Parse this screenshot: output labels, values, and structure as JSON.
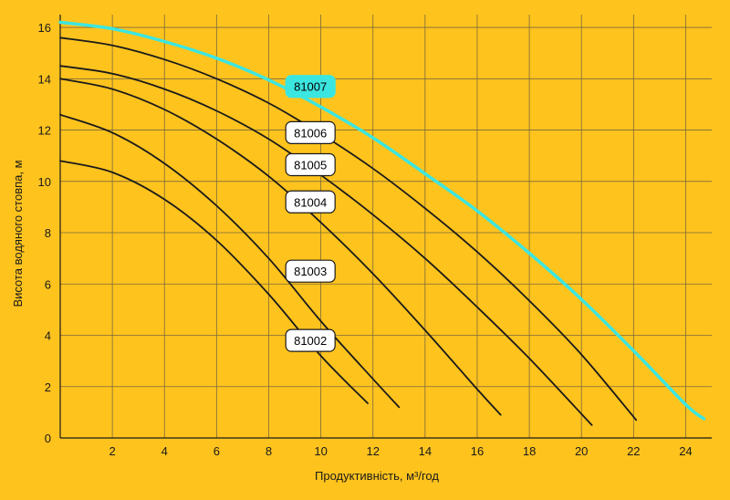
{
  "chart_data": {
    "type": "line",
    "title": "",
    "xlabel": "Продуктивність, м³/год",
    "ylabel": "Висота водяного стовпа, м",
    "xlim": [
      0,
      25
    ],
    "ylim": [
      0,
      16.5
    ],
    "x_ticks": [
      "2",
      "4",
      "6",
      "8",
      "10",
      "12",
      "14",
      "16",
      "18",
      "20",
      "22",
      "24"
    ],
    "y_ticks": [
      "0",
      "2",
      "4",
      "6",
      "8",
      "10",
      "12",
      "14",
      "16"
    ],
    "grid": true,
    "colors": {
      "background": "#FFC31E",
      "grid": "#7a6a3a",
      "curve": "#1a1a1a",
      "highlight": "#3CE6E0",
      "label_box": "#FFFFFF"
    },
    "series": [
      {
        "name": "81002",
        "highlight": false,
        "label_x": 9.6,
        "label_y": 3.8,
        "x": [
          0,
          2,
          4,
          6,
          8,
          10,
          11.8
        ],
        "y": [
          10.8,
          10.35,
          9.3,
          7.7,
          5.6,
          3.2,
          1.35
        ]
      },
      {
        "name": "81003",
        "highlight": false,
        "label_x": 9.6,
        "label_y": 6.5,
        "x": [
          0,
          2,
          4,
          6,
          8,
          10,
          12,
          13
        ],
        "y": [
          12.6,
          11.9,
          10.7,
          9.05,
          7.0,
          4.55,
          2.3,
          1.2
        ]
      },
      {
        "name": "81004",
        "highlight": false,
        "label_x": 9.6,
        "label_y": 9.2,
        "x": [
          0,
          2,
          4,
          6,
          8,
          10,
          12,
          14,
          16,
          16.9
        ],
        "y": [
          14.0,
          13.6,
          12.8,
          11.65,
          10.2,
          8.4,
          6.4,
          4.2,
          1.9,
          0.9
        ]
      },
      {
        "name": "81005",
        "highlight": false,
        "label_x": 9.6,
        "label_y": 10.65,
        "x": [
          0,
          2,
          4,
          6,
          8,
          10,
          12,
          14,
          16,
          18,
          20.4
        ],
        "y": [
          14.5,
          14.2,
          13.6,
          12.75,
          11.65,
          10.25,
          8.7,
          7.0,
          5.1,
          3.1,
          0.5
        ]
      },
      {
        "name": "81006",
        "highlight": false,
        "label_x": 9.6,
        "label_y": 11.9,
        "x": [
          0,
          2,
          4,
          6,
          8,
          10,
          12,
          14,
          16,
          18,
          20,
          22.1
        ],
        "y": [
          15.6,
          15.3,
          14.75,
          14.0,
          13.05,
          11.85,
          10.5,
          8.95,
          7.25,
          5.35,
          3.25,
          0.7
        ]
      },
      {
        "name": "81007",
        "highlight": true,
        "label_x": 9.6,
        "label_y": 13.7,
        "x": [
          0,
          2,
          4,
          6,
          8,
          10,
          12,
          14,
          16,
          18,
          20,
          22,
          24,
          24.7
        ],
        "y": [
          16.2,
          15.95,
          15.45,
          14.8,
          13.95,
          12.9,
          11.7,
          10.3,
          8.85,
          7.2,
          5.4,
          3.4,
          1.3,
          0.75
        ]
      }
    ]
  }
}
